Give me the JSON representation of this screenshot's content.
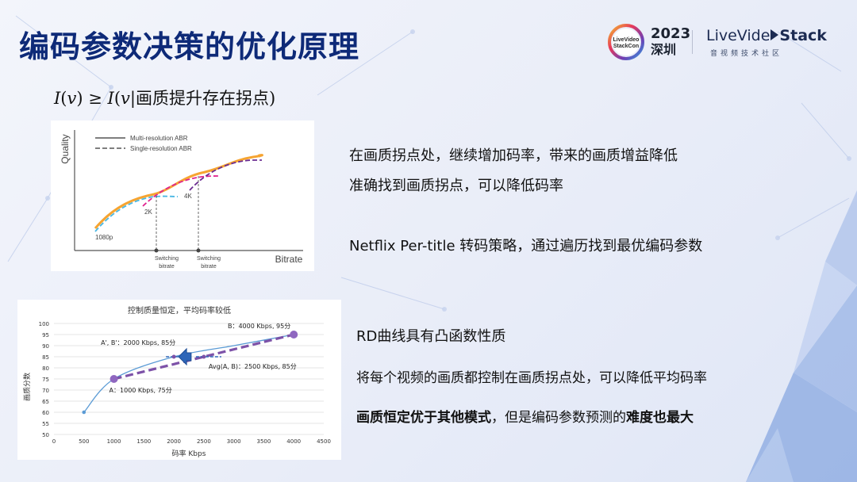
{
  "slide": {
    "title": "编码参数决策的优化原理",
    "formula": {
      "lhs_sym": "I",
      "lhs_arg": "v",
      "op": "≥",
      "rhs_sym": "I",
      "rhs_arg": "v|",
      "condition": "画质提升存在拐点)"
    }
  },
  "logo": {
    "year": "2023",
    "city": "深圳",
    "badge_text": "LiveVideo StackCon",
    "brand_prefix": "L",
    "brand_mid": "iveVide",
    "brand_suffix": "Stack",
    "sub": "音视频技术社区"
  },
  "texts": {
    "t1": "在画质拐点处，继续增加码率，带来的画质增益降低",
    "t2": "准确找到画质拐点，可以降低码率",
    "t3": "Netflix Per-title 转码策略，通过遍历找到最优编码参数",
    "t4": "RD曲线具有凸函数性质",
    "t5": "将每个视频的画质都控制在画质拐点处，可以降低平均码率",
    "t6_a": "画质恒定优于其他模式",
    "t6_b": "，但是编码参数预测的",
    "t6_c": "难度也最大"
  },
  "abr_chart": {
    "legend": [
      "Multi-resolution ABR",
      "Single-resolution ABR"
    ],
    "ylabel": "Quality",
    "xlabel": "Bitrate",
    "curve_labels": [
      "1080p",
      "2K",
      "4K"
    ],
    "switch_label_line1": "Switching",
    "switch_label_line2": "bitrate",
    "colors": {
      "multi": "#f6a431",
      "c1080": "#49b7e3",
      "c2k": "#e0248f",
      "c4k": "#6b2c91",
      "axis": "#555555"
    }
  },
  "chart_data": {
    "type": "line",
    "title": "控制质量恒定，平均码率较低",
    "xlabel": "码率 Kbps",
    "ylabel": "画质分数",
    "xlim": [
      0,
      4500
    ],
    "ylim": [
      50,
      100
    ],
    "xticks": [
      0,
      500,
      1000,
      1500,
      2000,
      2500,
      3000,
      3500,
      4000,
      4500
    ],
    "yticks": [
      50,
      55,
      60,
      65,
      70,
      75,
      80,
      85,
      90,
      95,
      100
    ],
    "grid": true,
    "series": [
      {
        "x": [
          500,
          1000,
          2000,
          3000,
          4000
        ],
        "y": [
          60,
          75,
          85,
          90,
          95
        ],
        "color": "#5b9bd5"
      }
    ],
    "highlight_points": [
      {
        "x": 1000,
        "y": 75,
        "label": "A：1000 Kbps, 75分"
      },
      {
        "x": 4000,
        "y": 95,
        "label": "B：4000 Kbps, 95分"
      }
    ],
    "secondary_points": [
      {
        "x": 2000,
        "y": 85,
        "label": "A', B'：2000 Kbps, 85分"
      },
      {
        "x": 2500,
        "y": 85,
        "label": "Avg(A, B)：2500 Kbps, 85分"
      }
    ],
    "colors": {
      "curve": "#5b9bd5",
      "dashed": "#7d52a8",
      "arrow": "#2e66b8",
      "point": "#8f67c0"
    }
  }
}
